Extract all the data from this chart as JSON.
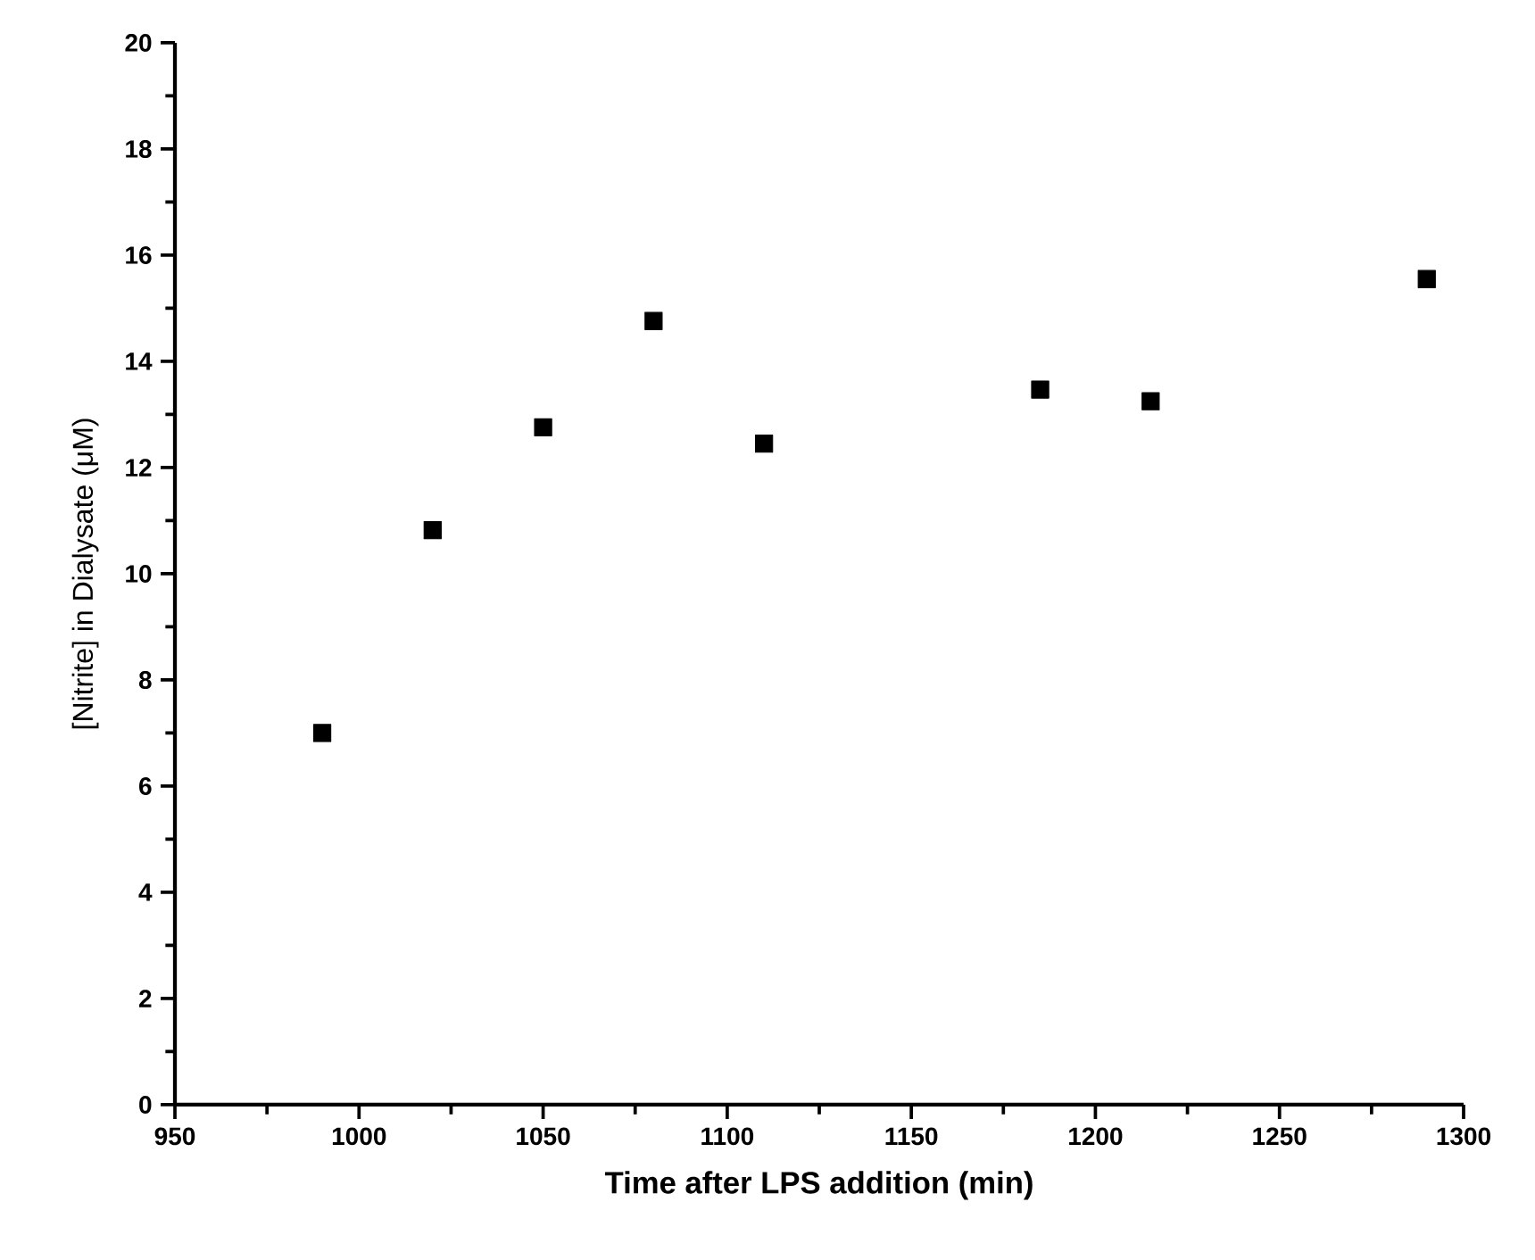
{
  "chart_data": {
    "type": "scatter",
    "xlabel": "Time after LPS addition (min)",
    "ylabel": "[Nitrite] in Dialysate (μM)",
    "x": [
      990,
      1020,
      1050,
      1080,
      1110,
      1185,
      1215,
      1290
    ],
    "values": [
      7.0,
      10.82,
      12.76,
      14.76,
      12.45,
      13.47,
      13.25,
      15.55
    ],
    "color": "#000000",
    "marker": "square",
    "xlim": [
      950,
      1300
    ],
    "xticks": [
      950,
      1000,
      1050,
      1100,
      1150,
      1200,
      1250,
      1300
    ],
    "ylim": [
      0,
      20
    ],
    "yticks": [
      0,
      2,
      4,
      6,
      8,
      10,
      12,
      14,
      16,
      18,
      20
    ]
  }
}
